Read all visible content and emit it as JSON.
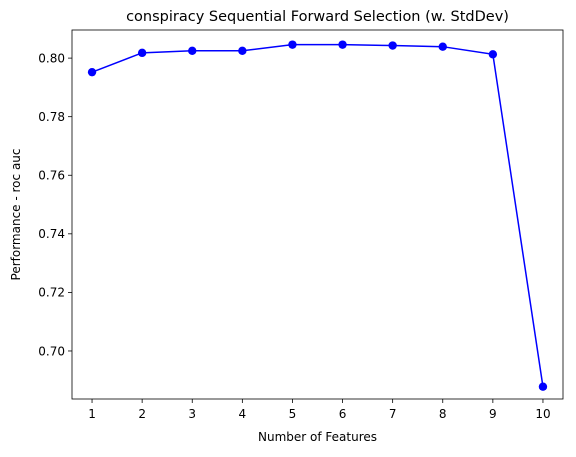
{
  "chart_data": {
    "type": "line",
    "title": "conspiracy Sequential Forward Selection (w. StdDev)",
    "xlabel": "Number of Features",
    "ylabel": "Performance - roc auc",
    "x": [
      1,
      2,
      3,
      4,
      5,
      6,
      7,
      8,
      9,
      10
    ],
    "series": [
      {
        "values": [
          0.7952,
          0.8018,
          0.8025,
          0.8025,
          0.8046,
          0.8046,
          0.8043,
          0.8039,
          0.8013,
          0.6878
        ],
        "color": "#0000ff",
        "marker": "circle"
      }
    ],
    "xlim": [
      0.6,
      10.4
    ],
    "ylim": [
      0.6836,
      0.8096
    ],
    "xticks": [
      "1",
      "2",
      "3",
      "4",
      "5",
      "6",
      "7",
      "8",
      "9",
      "10"
    ],
    "yticks": [
      "0.70",
      "0.72",
      "0.74",
      "0.76",
      "0.78",
      "0.80"
    ],
    "grid": false
  }
}
